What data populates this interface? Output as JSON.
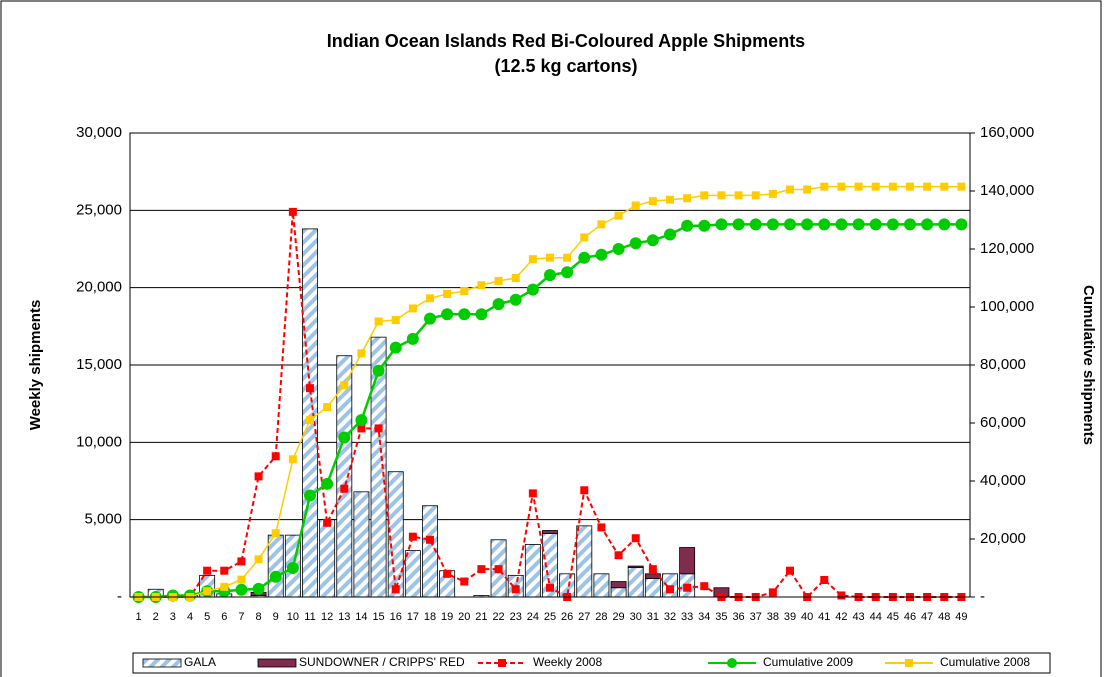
{
  "chart_data": {
    "type": "bar",
    "title": "Indian Ocean Islands Red Bi-Coloured Apple Shipments",
    "subtitle": "(12.5 kg cartons)",
    "y_label": "Weekly shipments",
    "y2_label": "Cumulative shipments",
    "categories": [
      "1",
      "2",
      "3",
      "4",
      "5",
      "6",
      "7",
      "8",
      "9",
      "10",
      "11",
      "12",
      "13",
      "14",
      "15",
      "16",
      "17",
      "18",
      "19",
      "20",
      "21",
      "22",
      "23",
      "24",
      "25",
      "26",
      "27",
      "28",
      "29",
      "30",
      "31",
      "32",
      "33",
      "34",
      "35",
      "36",
      "37",
      "38",
      "39",
      "40",
      "41",
      "42",
      "43",
      "44",
      "45",
      "46",
      "47",
      "48",
      "49"
    ],
    "ylim": [
      0,
      30000
    ],
    "yticks": [
      {
        "value": 0,
        "label": "-"
      },
      {
        "value": 5000,
        "label": "5,000"
      },
      {
        "value": 10000,
        "label": "10,000"
      },
      {
        "value": 15000,
        "label": "15,000"
      },
      {
        "value": 20000,
        "label": "20,000"
      },
      {
        "value": 25000,
        "label": "25,000"
      },
      {
        "value": 30000,
        "label": "30,000"
      }
    ],
    "y2lim": [
      0,
      160000
    ],
    "y2ticks": [
      {
        "value": 0,
        "label": "-"
      },
      {
        "value": 20000,
        "label": "20,000"
      },
      {
        "value": 40000,
        "label": "40,000"
      },
      {
        "value": 60000,
        "label": "60,000"
      },
      {
        "value": 80000,
        "label": "80,000"
      },
      {
        "value": 100000,
        "label": "100,000"
      },
      {
        "value": 120000,
        "label": "120,000"
      },
      {
        "value": 140000,
        "label": "140,000"
      },
      {
        "value": 160000,
        "label": "160,000"
      }
    ],
    "grid": true,
    "legend": "bottom",
    "series": [
      {
        "name": "GALA",
        "kind": "bar",
        "color": "#9dc3e6",
        "values": [
          0,
          500,
          0,
          100,
          1400,
          200,
          0,
          100,
          4000,
          4000,
          23800,
          5000,
          15600,
          6800,
          16800,
          8100,
          3000,
          5900,
          1700,
          0,
          100,
          3700,
          1400,
          3400,
          4100,
          1500,
          4600,
          1500,
          600,
          1900,
          1200,
          1500,
          1500,
          0,
          0,
          0,
          0,
          0,
          0,
          0,
          0,
          0,
          0,
          0,
          0,
          0,
          0,
          0,
          0
        ]
      },
      {
        "name": "SUNDOWNER / CRIPPS' RED",
        "kind": "bar",
        "color": "#7f2c4e",
        "values": [
          0,
          0,
          0,
          0,
          0,
          0,
          0,
          200,
          0,
          0,
          0,
          0,
          0,
          0,
          0,
          0,
          0,
          0,
          0,
          0,
          0,
          0,
          0,
          0,
          200,
          0,
          0,
          0,
          400,
          100,
          300,
          0,
          1700,
          0,
          600,
          0,
          0,
          0,
          0,
          0,
          0,
          0,
          0,
          0,
          0,
          0,
          0,
          0,
          0
        ]
      },
      {
        "name": "Weekly 2008",
        "kind": "line",
        "color": "#ff0000",
        "marker": "square",
        "dashed": true,
        "values": [
          0,
          0,
          0,
          0,
          1700,
          1700,
          2300,
          7800,
          9100,
          24900,
          13500,
          4800,
          7000,
          10900,
          10900,
          500,
          3900,
          3700,
          1500,
          1000,
          1800,
          1800,
          500,
          6700,
          600,
          0,
          6900,
          4500,
          2700,
          3800,
          1800,
          500,
          600,
          700,
          0,
          0,
          0,
          300,
          1700,
          0,
          1100,
          100,
          0,
          0,
          0,
          0,
          0,
          0,
          0
        ]
      },
      {
        "name": "Cumulative 2009",
        "kind": "line",
        "axis": "y2",
        "color": "#00cc00",
        "marker": "circle",
        "values": [
          0,
          0,
          500,
          500,
          2000,
          2000,
          2500,
          2800,
          7000,
          10000,
          35000,
          39000,
          55000,
          61000,
          78000,
          86000,
          89000,
          96000,
          97500,
          97500,
          97500,
          101000,
          102500,
          106000,
          111000,
          112000,
          117000,
          118000,
          120000,
          122000,
          123000,
          125000,
          128000,
          128000,
          128500,
          128500,
          128500,
          128500,
          128500,
          128500,
          128500,
          128500,
          128500,
          128500,
          128500,
          128500,
          128500,
          128500,
          128500
        ]
      },
      {
        "name": "Cumulative 2008",
        "kind": "line",
        "axis": "y2",
        "color": "#ffcc00",
        "marker": "square",
        "values": [
          0,
          0,
          0,
          0,
          2000,
          3500,
          6000,
          13000,
          22000,
          47500,
          61000,
          65500,
          73000,
          84000,
          95000,
          95500,
          99500,
          103000,
          104500,
          105500,
          107500,
          109000,
          110000,
          116500,
          117000,
          117000,
          124000,
          128500,
          131500,
          135000,
          136500,
          137000,
          137500,
          138500,
          138500,
          138500,
          138500,
          139000,
          140500,
          140500,
          141500,
          141500,
          141500,
          141500,
          141500,
          141500,
          141500,
          141500,
          141500
        ]
      }
    ]
  }
}
